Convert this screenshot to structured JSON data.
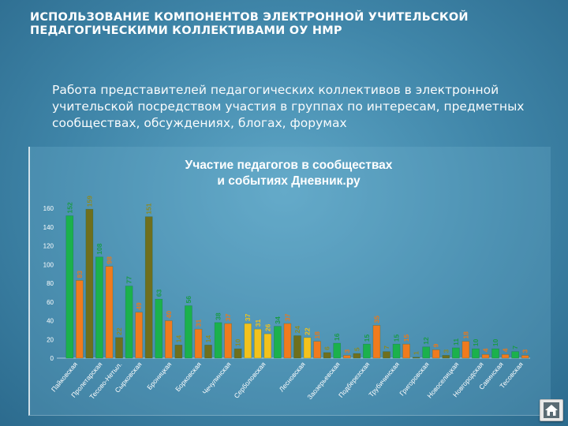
{
  "page": {
    "title_line1": "ИСПОЛЬЗОВАНИЕ КОМПОНЕНТОВ ЭЛЕКТРОННОЙ УЧИТЕЛЬСКОЙ",
    "title_line2": "ПЕДАГОГИЧЕСКИМИ КОЛЛЕКТИВАМИ ОУ НМР",
    "subtitle": "Работа представителей педагогических коллективов в электронной учительской посредством участия в группах по интересам, предметных сообществах, обсуждениях, блогах, форумах"
  },
  "nav": {
    "home_icon": "home-icon"
  },
  "colors": {
    "green": "#1bb14c",
    "orange": "#f07b1e",
    "olive": "#6f6f1d",
    "yellow": "#f3c21c",
    "label_green": "#1a9a48",
    "label_orange": "#e8791c",
    "label_olive": "#8a8a25",
    "label_yellow": "#f2c21a"
  },
  "chart_data": {
    "type": "bar",
    "title_line1": "Участие педагогов в сообществах",
    "title_line2": "и событиях Дневник.ру",
    "ylim": [
      0,
      160
    ],
    "yticks": [
      0,
      20,
      40,
      60,
      80,
      100,
      120,
      140,
      160
    ],
    "grid": false,
    "legend": "none",
    "groups": [
      {
        "label": "Пайковская",
        "bars": [
          {
            "value": 152,
            "color": "green"
          },
          {
            "value": 83,
            "color": "orange"
          }
        ]
      },
      {
        "label": "Пролетарская",
        "bars": [
          {
            "value": 159,
            "color": "olive"
          },
          {
            "value": 108,
            "color": "green"
          },
          {
            "value": 98,
            "color": "orange"
          }
        ]
      },
      {
        "label": "Тесово-Нетыл.",
        "bars": [
          {
            "value": 22,
            "color": "olive"
          }
        ]
      },
      {
        "label": "Сырковская",
        "bars": [
          {
            "value": 77,
            "color": "green"
          },
          {
            "value": 49,
            "color": "orange"
          },
          {
            "value": 151,
            "color": "olive"
          }
        ]
      },
      {
        "label": "Броницкая",
        "bars": [
          {
            "value": 63,
            "color": "green"
          },
          {
            "value": 40,
            "color": "orange"
          },
          {
            "value": 14,
            "color": "olive"
          }
        ]
      },
      {
        "label": "Борковская",
        "bars": [
          {
            "value": 56,
            "color": "green"
          },
          {
            "value": 31,
            "color": "orange"
          },
          {
            "value": 14,
            "color": "olive"
          }
        ]
      },
      {
        "label": "Чечулинская",
        "bars": [
          {
            "value": 38,
            "color": "green"
          },
          {
            "value": 37,
            "color": "orange"
          },
          {
            "value": 10,
            "color": "olive"
          }
        ]
      },
      {
        "label": "Серболовская",
        "bars": [
          {
            "value": 37,
            "color": "yellow"
          },
          {
            "value": 31,
            "color": "yellow"
          },
          {
            "value": 26,
            "color": "yellow"
          },
          {
            "value": 34,
            "color": "green"
          }
        ]
      },
      {
        "label": "Лесновская",
        "bars": [
          {
            "value": 37,
            "color": "orange"
          },
          {
            "value": 24,
            "color": "olive"
          },
          {
            "value": 22,
            "color": "yellow"
          },
          {
            "value": 18,
            "color": "orange"
          }
        ]
      },
      {
        "label": "Заозерьевская",
        "bars": [
          {
            "value": 6,
            "color": "olive"
          },
          {
            "value": 16,
            "color": "green"
          },
          {
            "value": 3,
            "color": "orange"
          }
        ]
      },
      {
        "label": "Подберезская",
        "bars": [
          {
            "value": 5,
            "color": "olive"
          },
          {
            "value": 15,
            "color": "green"
          },
          {
            "value": 35,
            "color": "orange"
          }
        ]
      },
      {
        "label": "Трубичинская",
        "bars": [
          {
            "value": 7,
            "color": "olive"
          },
          {
            "value": 15,
            "color": "green"
          },
          {
            "value": 15,
            "color": "orange"
          }
        ]
      },
      {
        "label": "Григоровская",
        "bars": [
          {
            "value": 1,
            "color": "olive"
          },
          {
            "value": 12,
            "color": "green"
          },
          {
            "value": 9,
            "color": "orange"
          }
        ]
      },
      {
        "label": "Новоселицкая",
        "bars": [
          {
            "value": 3,
            "color": "olive"
          },
          {
            "value": 11,
            "color": "green"
          },
          {
            "value": 18,
            "color": "orange"
          }
        ]
      },
      {
        "label": "Новгородская",
        "bars": [
          {
            "value": 10,
            "color": "green"
          },
          {
            "value": 4,
            "color": "orange"
          }
        ]
      },
      {
        "label": "Савинская",
        "bars": [
          {
            "value": 10,
            "color": "green"
          },
          {
            "value": 4,
            "color": "orange"
          }
        ]
      },
      {
        "label": "Тесовская",
        "bars": [
          {
            "value": 7,
            "color": "green"
          },
          {
            "value": 3,
            "color": "orange"
          }
        ]
      }
    ]
  }
}
